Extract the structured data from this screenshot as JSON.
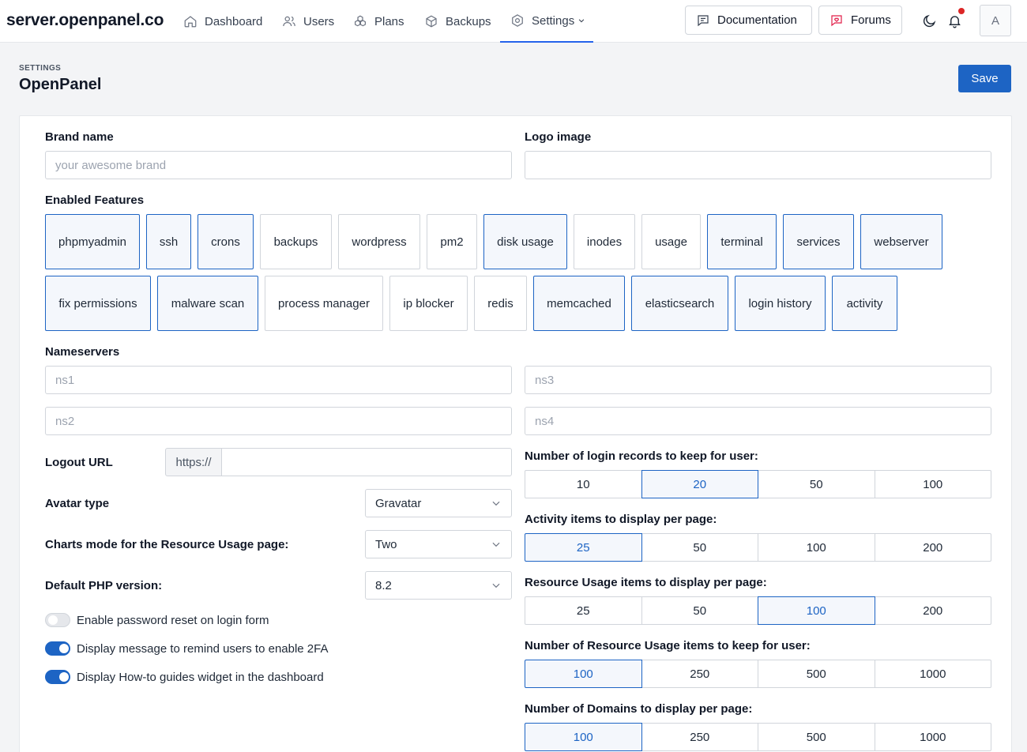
{
  "nav": {
    "brand": "server.openpanel.co",
    "items": [
      {
        "label": "Dashboard",
        "icon": "home-icon"
      },
      {
        "label": "Users",
        "icon": "users-icon"
      },
      {
        "label": "Plans",
        "icon": "plans-icon"
      },
      {
        "label": "Backups",
        "icon": "box-icon"
      },
      {
        "label": "Settings",
        "icon": "settings-icon"
      }
    ],
    "documentation": "Documentation",
    "forums": "Forums",
    "avatar": "A"
  },
  "header": {
    "eyebrow": "SETTINGS",
    "title": "OpenPanel",
    "save": "Save"
  },
  "form": {
    "brand_label": "Brand name",
    "brand_placeholder": "your awesome brand",
    "logo_label": "Logo image",
    "features_label": "Enabled Features",
    "features": [
      {
        "label": "phpmyadmin",
        "enabled": true
      },
      {
        "label": "ssh",
        "enabled": true
      },
      {
        "label": "crons",
        "enabled": true
      },
      {
        "label": "backups",
        "enabled": false
      },
      {
        "label": "wordpress",
        "enabled": false
      },
      {
        "label": "pm2",
        "enabled": false
      },
      {
        "label": "disk usage",
        "enabled": true
      },
      {
        "label": "inodes",
        "enabled": false
      },
      {
        "label": "usage",
        "enabled": false
      },
      {
        "label": "terminal",
        "enabled": true
      },
      {
        "label": "services",
        "enabled": true
      },
      {
        "label": "webserver",
        "enabled": true
      },
      {
        "label": "fix permissions",
        "enabled": true
      },
      {
        "label": "malware scan",
        "enabled": true
      },
      {
        "label": "process manager",
        "enabled": false
      },
      {
        "label": "ip blocker",
        "enabled": false
      },
      {
        "label": "redis",
        "enabled": false
      },
      {
        "label": "memcached",
        "enabled": true
      },
      {
        "label": "elasticsearch",
        "enabled": true
      },
      {
        "label": "login history",
        "enabled": true
      },
      {
        "label": "activity",
        "enabled": true
      }
    ],
    "nameservers_label": "Nameservers",
    "ns1": "ns1",
    "ns2": "ns2",
    "ns3": "ns3",
    "ns4": "ns4",
    "logout_label": "Logout URL",
    "logout_prefix": "https://",
    "avatar_label": "Avatar type",
    "avatar_value": "Gravatar",
    "charts_label": "Charts mode for the Resource Usage page:",
    "charts_value": "Two",
    "php_label": "Default PHP version:",
    "php_value": "8.2",
    "toggles": [
      {
        "label": "Enable password reset on login form",
        "on": false
      },
      {
        "label": "Display message to remind users to enable 2FA",
        "on": true
      },
      {
        "label": "Display How-to guides widget in the dashboard",
        "on": true
      }
    ],
    "segments": [
      {
        "label": "Number of login records to keep for user:",
        "options": [
          "10",
          "20",
          "50",
          "100"
        ],
        "selected": "20"
      },
      {
        "label": "Activity items to display per page:",
        "options": [
          "25",
          "50",
          "100",
          "200"
        ],
        "selected": "25"
      },
      {
        "label": "Resource Usage items to display per page:",
        "options": [
          "25",
          "50",
          "100",
          "200"
        ],
        "selected": "100"
      },
      {
        "label": "Number of Resource Usage items to keep for user:",
        "options": [
          "100",
          "250",
          "500",
          "1000"
        ],
        "selected": "100"
      },
      {
        "label": "Number of Domains to display per page:",
        "options": [
          "100",
          "250",
          "500",
          "1000"
        ],
        "selected": "100"
      }
    ]
  },
  "colors": {
    "accent": "#1d64c4",
    "notification": "#dc2626"
  }
}
